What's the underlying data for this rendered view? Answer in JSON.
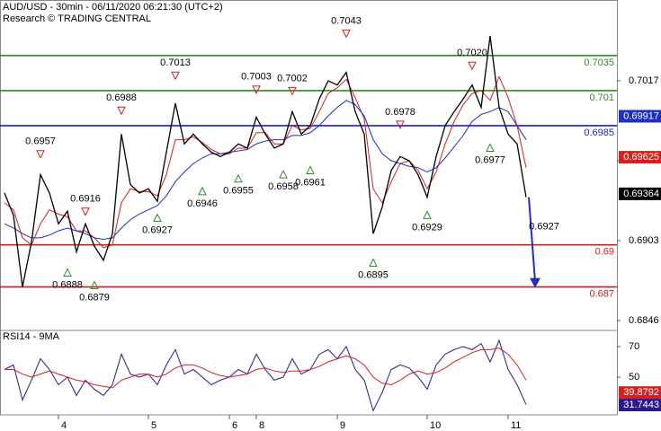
{
  "chart_data": {
    "type": "line",
    "title": "AUD/USD - 30min - 06/11/2020 06:21:30 (UTC+2)",
    "subtitle": "Research © TRADING CENTRAL",
    "categories": [
      null,
      null,
      null,
      null,
      null,
      null,
      "4",
      null,
      null,
      null,
      null,
      null,
      null,
      null,
      null,
      null,
      "5",
      null,
      null,
      null,
      null,
      null,
      null,
      null,
      null,
      "6",
      null,
      null,
      "8",
      null,
      null,
      null,
      null,
      null,
      null,
      null,
      null,
      "9",
      null,
      null,
      null,
      null,
      null,
      null,
      null,
      null,
      null,
      "10",
      null,
      null,
      null,
      null,
      null,
      null,
      null,
      null,
      "11",
      null,
      null
    ],
    "ylim": [
      0.6839,
      0.70746
    ],
    "yticks": [
      0.7017,
      {
        "value": 0.696,
        "label": "0.6960"
      },
      0.6903,
      0.6846
    ],
    "series": [
      {
        "color": "#000000",
        "current": 0.69364,
        "values": [
          0.6937,
          0.6921,
          0.687,
          0.6902,
          0.695,
          0.6937,
          0.6915,
          0.6924,
          0.6895,
          0.6915,
          0.6899,
          0.6889,
          0.6908,
          0.6979,
          0.6943,
          0.6937,
          0.694,
          0.6931,
          0.6966,
          0.7001,
          0.6972,
          0.6979,
          0.6972,
          0.6966,
          0.6963,
          0.6966,
          0.6972,
          0.6969,
          0.6991,
          0.6979,
          0.6969,
          0.6972,
          0.6995,
          0.6979,
          0.6985,
          0.7004,
          0.7017,
          0.7014,
          0.7023,
          0.6995,
          0.6979,
          0.6908,
          0.6927,
          0.6953,
          0.6963,
          0.696,
          0.695,
          0.6934,
          0.6963,
          0.6985,
          0.6995,
          0.7004,
          0.7014,
          0.6998,
          0.7049,
          0.6998,
          0.6979,
          0.6972,
          0.6934
        ]
      },
      {
        "color": "#1f2fbf",
        "current": 0.69917,
        "values": [
          0.6915,
          0.6912,
          0.6908,
          0.6905,
          0.6905,
          0.6907,
          0.691,
          0.6912,
          0.691,
          0.6908,
          0.6905,
          0.6904,
          0.6905,
          0.6912,
          0.6918,
          0.6922,
          0.6925,
          0.6928,
          0.6935,
          0.6945,
          0.6952,
          0.6958,
          0.6962,
          0.6965,
          0.6965,
          0.6966,
          0.6967,
          0.6968,
          0.6972,
          0.6974,
          0.6975,
          0.6975,
          0.6978,
          0.6978,
          0.698,
          0.6985,
          0.6992,
          0.6998,
          0.7003,
          0.7,
          0.6992,
          0.6975,
          0.6965,
          0.696,
          0.6958,
          0.6956,
          0.6955,
          0.6952,
          0.6955,
          0.6962,
          0.697,
          0.6978,
          0.6988,
          0.6993,
          0.6995,
          0.6998,
          0.6995,
          0.6985,
          0.6975
        ]
      },
      {
        "color": "#d42020",
        "current": 0.69625,
        "values": [
          0.693,
          0.6925,
          0.6905,
          0.69,
          0.6915,
          0.6925,
          0.6922,
          0.692,
          0.691,
          0.691,
          0.6905,
          0.6898,
          0.69,
          0.693,
          0.694,
          0.6938,
          0.6938,
          0.6935,
          0.695,
          0.6975,
          0.6975,
          0.6977,
          0.6973,
          0.6968,
          0.6965,
          0.6965,
          0.6969,
          0.6969,
          0.698,
          0.698,
          0.6972,
          0.6972,
          0.6985,
          0.6982,
          0.6983,
          0.6995,
          0.7008,
          0.7012,
          0.7018,
          0.7005,
          0.699,
          0.694,
          0.693,
          0.6945,
          0.6958,
          0.696,
          0.6953,
          0.694,
          0.6952,
          0.6972,
          0.6988,
          0.7,
          0.7008,
          0.701,
          0.7003,
          0.702,
          0.7005,
          0.6985,
          0.6955
        ]
      }
    ],
    "levels": [
      {
        "value": 0.7035,
        "color": "#2e8b2e"
      },
      {
        "value": 0.701,
        "color": "#2e8b2e"
      },
      {
        "value": 0.6985,
        "color": "#1f1fbf"
      },
      {
        "value": 0.69,
        "color": "#cc2020"
      },
      {
        "value": 0.687,
        "color": "#cc2020"
      }
    ],
    "annotations": [
      {
        "at": 4,
        "value": 0.6957,
        "kind": "high"
      },
      {
        "at": 9,
        "value": 0.6916,
        "kind": "high"
      },
      {
        "at": 13,
        "value": 0.6988,
        "kind": "high"
      },
      {
        "at": 19,
        "value": 0.7013,
        "kind": "high"
      },
      {
        "at": 28,
        "value": 0.7003,
        "kind": "high"
      },
      {
        "at": 32,
        "value": 0.7002,
        "kind": "high"
      },
      {
        "at": 38,
        "value": 0.7043,
        "kind": "high"
      },
      {
        "at": 44,
        "value": 0.6978,
        "kind": "high"
      },
      {
        "at": 52,
        "value": 0.702,
        "label": "0.7020",
        "kind": "high"
      },
      {
        "at": 7,
        "value": 0.6888,
        "kind": "low"
      },
      {
        "at": 10,
        "value": 0.6879,
        "kind": "low"
      },
      {
        "at": 17,
        "value": 0.6927,
        "kind": "low"
      },
      {
        "at": 22,
        "value": 0.6946,
        "kind": "low"
      },
      {
        "at": 26,
        "value": 0.6955,
        "kind": "low"
      },
      {
        "at": 31,
        "value": 0.6958,
        "kind": "low"
      },
      {
        "at": 34,
        "value": 0.6961,
        "kind": "low"
      },
      {
        "at": 41,
        "value": 0.6895,
        "kind": "low"
      },
      {
        "at": 47,
        "value": 0.6929,
        "kind": "low"
      },
      {
        "at": 54,
        "value": 0.6977,
        "kind": "low"
      },
      {
        "at": 58,
        "value": 0.6927,
        "kind": "target"
      }
    ],
    "rsi": {
      "title": "RSI14 - 9MA",
      "ylim": [
        25.3,
        79.4
      ],
      "yticks": [
        70,
        50
      ],
      "series": [
        {
          "color": "#2a1a8c",
          "current": 31.7443,
          "values": [
            55,
            58,
            35,
            48,
            62,
            55,
            45,
            50,
            38,
            48,
            42,
            38,
            45,
            65,
            52,
            50,
            52,
            45,
            58,
            68,
            52,
            55,
            50,
            45,
            48,
            50,
            55,
            52,
            65,
            55,
            48,
            50,
            62,
            52,
            55,
            65,
            68,
            62,
            70,
            55,
            48,
            28,
            40,
            55,
            58,
            56,
            50,
            42,
            58,
            65,
            68,
            70,
            68,
            72,
            60,
            74,
            55,
            45,
            32
          ]
        },
        {
          "color": "#d42020",
          "current": 39.8792,
          "values": [
            55,
            55,
            52,
            50,
            52,
            54,
            52,
            50,
            48,
            47,
            45,
            44,
            43,
            48,
            50,
            52,
            52,
            50,
            52,
            56,
            58,
            58,
            56,
            53,
            51,
            50,
            51,
            52,
            55,
            56,
            54,
            53,
            54,
            54,
            55,
            57,
            60,
            62,
            64,
            62,
            58,
            50,
            46,
            45,
            48,
            52,
            54,
            52,
            53,
            56,
            60,
            63,
            66,
            68,
            68,
            69,
            65,
            58,
            48
          ]
        }
      ]
    }
  }
}
